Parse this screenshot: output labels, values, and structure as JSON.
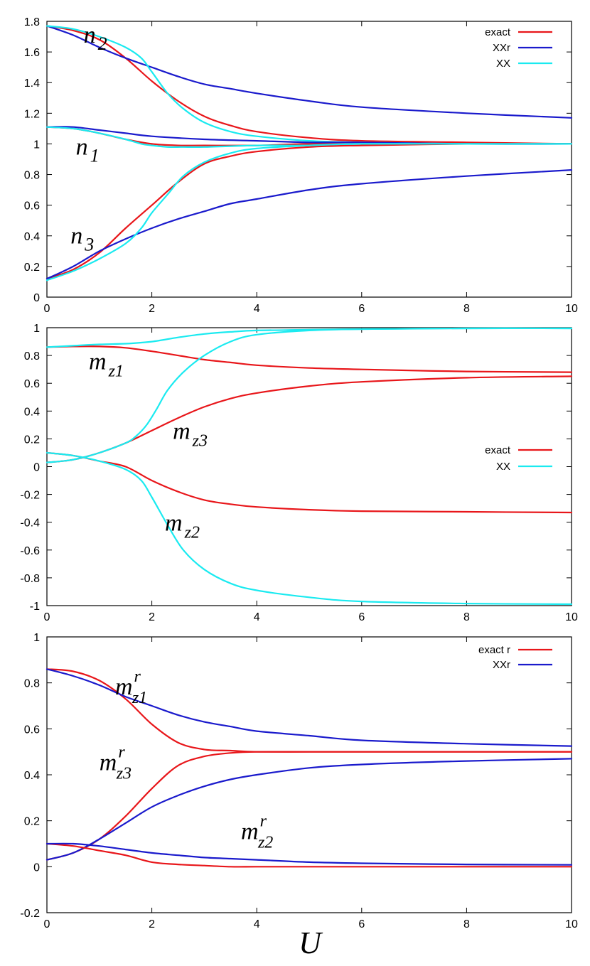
{
  "chart_data": [
    {
      "type": "line",
      "xlim": [
        0,
        10
      ],
      "ylim": [
        0,
        1.8
      ],
      "xticks": [
        "0",
        "2",
        "4",
        "6",
        "8",
        "10"
      ],
      "yticks": [
        "0",
        "0.2",
        "0.4",
        "0.6",
        "0.8",
        "1",
        "1.2",
        "1.4",
        "1.6",
        "1.8"
      ],
      "legend": [
        {
          "name": "exact",
          "color": "#e8161a"
        },
        {
          "name": "XXr",
          "color": "#1a1acc"
        },
        {
          "name": "XX",
          "color": "#1aeaf0"
        }
      ],
      "annotations": [
        {
          "base": "n",
          "sub": "2",
          "sup": "",
          "at": [
            0.7,
            1.66
          ]
        },
        {
          "base": "n",
          "sub": "1",
          "sup": "",
          "at": [
            0.55,
            0.93
          ]
        },
        {
          "base": "n",
          "sub": "3",
          "sup": "",
          "at": [
            0.45,
            0.35
          ]
        }
      ],
      "series": [
        {
          "name": "n2 exact",
          "color": "#e8161a",
          "x": [
            0,
            0.5,
            1,
            1.5,
            2,
            2.5,
            3,
            3.5,
            4,
            5,
            6,
            8,
            10
          ],
          "y": [
            1.77,
            1.74,
            1.68,
            1.56,
            1.41,
            1.28,
            1.18,
            1.12,
            1.08,
            1.04,
            1.02,
            1.01,
            1.0
          ]
        },
        {
          "name": "n2 XXr",
          "color": "#1a1acc",
          "x": [
            0,
            0.5,
            1,
            1.5,
            2,
            2.5,
            3,
            3.5,
            4,
            5,
            6,
            8,
            10
          ],
          "y": [
            1.77,
            1.71,
            1.63,
            1.56,
            1.5,
            1.44,
            1.39,
            1.36,
            1.33,
            1.28,
            1.24,
            1.2,
            1.17
          ]
        },
        {
          "name": "n2 XX",
          "color": "#1aeaf0",
          "x": [
            0,
            0.5,
            1,
            1.5,
            1.8,
            2,
            2.3,
            2.6,
            3,
            3.5,
            4,
            5,
            6,
            8,
            10
          ],
          "y": [
            1.77,
            1.75,
            1.7,
            1.63,
            1.56,
            1.47,
            1.33,
            1.23,
            1.14,
            1.08,
            1.05,
            1.02,
            1.01,
            1.0,
            1.0
          ]
        },
        {
          "name": "n1 exact",
          "color": "#e8161a",
          "x": [
            0,
            0.5,
            1,
            1.5,
            2,
            2.5,
            3,
            4,
            5,
            6,
            8,
            10
          ],
          "y": [
            1.11,
            1.1,
            1.07,
            1.03,
            1.0,
            0.99,
            0.99,
            0.99,
            1.0,
            1.0,
            1.0,
            1.0
          ]
        },
        {
          "name": "n1 XXr",
          "color": "#1a1acc",
          "x": [
            0,
            0.5,
            1,
            1.5,
            2,
            3,
            4,
            5,
            6,
            8,
            10
          ],
          "y": [
            1.11,
            1.11,
            1.09,
            1.07,
            1.05,
            1.03,
            1.02,
            1.01,
            1.01,
            1.0,
            1.0
          ]
        },
        {
          "name": "n1 XX",
          "color": "#1aeaf0",
          "x": [
            0,
            0.5,
            1,
            1.5,
            1.8,
            2,
            2.3,
            2.6,
            3,
            4,
            5,
            6,
            8,
            10
          ],
          "y": [
            1.11,
            1.1,
            1.07,
            1.03,
            1.0,
            0.99,
            0.98,
            0.98,
            0.98,
            0.99,
            0.99,
            1.0,
            1.0,
            1.0
          ]
        },
        {
          "name": "n3 exact",
          "color": "#e8161a",
          "x": [
            0,
            0.5,
            1,
            1.5,
            2,
            2.5,
            3,
            3.5,
            4,
            5,
            6,
            8,
            10
          ],
          "y": [
            0.12,
            0.18,
            0.29,
            0.45,
            0.6,
            0.75,
            0.87,
            0.92,
            0.95,
            0.98,
            0.99,
            1.0,
            1.0
          ]
        },
        {
          "name": "n3 XXr",
          "color": "#1a1acc",
          "x": [
            0,
            0.5,
            1,
            1.5,
            2,
            2.5,
            3,
            3.5,
            4,
            5,
            6,
            8,
            10
          ],
          "y": [
            0.12,
            0.2,
            0.3,
            0.38,
            0.45,
            0.51,
            0.56,
            0.61,
            0.64,
            0.7,
            0.74,
            0.79,
            0.83
          ]
        },
        {
          "name": "n3 XX",
          "color": "#1aeaf0",
          "x": [
            0,
            0.5,
            1,
            1.5,
            1.8,
            2,
            2.3,
            2.6,
            3,
            3.5,
            4,
            5,
            6,
            8,
            10
          ],
          "y": [
            0.11,
            0.17,
            0.25,
            0.35,
            0.45,
            0.55,
            0.67,
            0.79,
            0.88,
            0.94,
            0.97,
            0.99,
            1.0,
            1.0,
            1.0
          ]
        }
      ]
    },
    {
      "type": "line",
      "xlim": [
        0,
        10
      ],
      "ylim": [
        -1,
        1
      ],
      "xticks": [
        "0",
        "2",
        "4",
        "6",
        "8",
        "10"
      ],
      "yticks": [
        "-1",
        "-0.8",
        "-0.6",
        "-0.4",
        "-0.2",
        "0",
        "0.2",
        "0.4",
        "0.6",
        "0.8",
        "1"
      ],
      "legend": [
        {
          "name": "exact",
          "color": "#e8161a"
        },
        {
          "name": "XX",
          "color": "#1aeaf0"
        }
      ],
      "annotations": [
        {
          "base": "m",
          "sub": "z1",
          "sup": "",
          "at": [
            0.8,
            0.7
          ]
        },
        {
          "base": "m",
          "sub": "z3",
          "sup": "",
          "at": [
            2.4,
            0.2
          ]
        },
        {
          "base": "m",
          "sub": "z2",
          "sup": "",
          "at": [
            2.25,
            -0.46
          ]
        }
      ],
      "series": [
        {
          "name": "mz1 exact",
          "color": "#e8161a",
          "x": [
            0,
            0.5,
            1,
            1.5,
            2,
            2.5,
            3,
            3.5,
            4,
            5,
            6,
            8,
            10
          ],
          "y": [
            0.86,
            0.865,
            0.865,
            0.855,
            0.83,
            0.8,
            0.77,
            0.75,
            0.73,
            0.71,
            0.7,
            0.685,
            0.68
          ]
        },
        {
          "name": "mz1 XX",
          "color": "#1aeaf0",
          "x": [
            0,
            0.5,
            1,
            1.5,
            2,
            2.5,
            3,
            3.5,
            4,
            5,
            6,
            8,
            10
          ],
          "y": [
            0.86,
            0.87,
            0.88,
            0.885,
            0.9,
            0.93,
            0.955,
            0.97,
            0.98,
            0.985,
            0.99,
            0.995,
            0.995
          ]
        },
        {
          "name": "mz3 exact",
          "color": "#e8161a",
          "x": [
            0,
            0.5,
            1,
            1.5,
            2,
            2.5,
            3,
            3.5,
            4,
            5,
            6,
            8,
            10
          ],
          "y": [
            0.03,
            0.05,
            0.1,
            0.17,
            0.26,
            0.35,
            0.43,
            0.49,
            0.53,
            0.58,
            0.61,
            0.64,
            0.65
          ]
        },
        {
          "name": "mz3 XX",
          "color": "#1aeaf0",
          "x": [
            0,
            0.5,
            1,
            1.5,
            1.7,
            1.9,
            2.1,
            2.3,
            2.6,
            3,
            3.5,
            4,
            5,
            6,
            8,
            10
          ],
          "y": [
            0.03,
            0.05,
            0.1,
            0.17,
            0.22,
            0.3,
            0.42,
            0.55,
            0.68,
            0.8,
            0.9,
            0.95,
            0.98,
            0.99,
            0.995,
            0.995
          ]
        },
        {
          "name": "mz2 exact",
          "color": "#e8161a",
          "x": [
            0,
            0.5,
            1,
            1.5,
            2,
            2.5,
            3,
            3.5,
            4,
            5,
            6,
            8,
            10
          ],
          "y": [
            0.1,
            0.08,
            0.04,
            0.0,
            -0.1,
            -0.18,
            -0.24,
            -0.27,
            -0.29,
            -0.31,
            -0.32,
            -0.325,
            -0.33
          ]
        },
        {
          "name": "mz2 XX",
          "color": "#1aeaf0",
          "x": [
            0,
            0.5,
            1,
            1.5,
            1.8,
            2,
            2.3,
            2.6,
            3,
            3.5,
            4,
            5,
            6,
            8,
            10
          ],
          "y": [
            0.1,
            0.08,
            0.04,
            -0.02,
            -0.1,
            -0.22,
            -0.42,
            -0.6,
            -0.74,
            -0.84,
            -0.89,
            -0.94,
            -0.97,
            -0.985,
            -0.99
          ]
        }
      ]
    },
    {
      "type": "line",
      "xlim": [
        0,
        10
      ],
      "ylim": [
        -0.2,
        1
      ],
      "xticks": [
        "0",
        "2",
        "4",
        "6",
        "8",
        "10"
      ],
      "yticks": [
        "-0.2",
        "0",
        "0.2",
        "0.4",
        "0.6",
        "0.8",
        "1"
      ],
      "xlabel": "U",
      "legend": [
        {
          "name": "exact r",
          "color": "#e8161a"
        },
        {
          "name": "XXr",
          "color": "#1a1acc"
        }
      ],
      "annotations": [
        {
          "base": "m",
          "sub": "z1",
          "sup": "r",
          "at": [
            1.3,
            0.75
          ]
        },
        {
          "base": "m",
          "sub": "z3",
          "sup": "r",
          "at": [
            1.0,
            0.42
          ]
        },
        {
          "base": "m",
          "sub": "z2",
          "sup": "r",
          "at": [
            3.7,
            0.12
          ]
        }
      ],
      "series": [
        {
          "name": "mz1r exact",
          "color": "#e8161a",
          "x": [
            0,
            0.5,
            1,
            1.5,
            2,
            2.5,
            3,
            3.5,
            4,
            5,
            6,
            8,
            10
          ],
          "y": [
            0.86,
            0.85,
            0.81,
            0.73,
            0.62,
            0.54,
            0.51,
            0.505,
            0.5,
            0.5,
            0.5,
            0.5,
            0.5
          ]
        },
        {
          "name": "mz1r XXr",
          "color": "#1a1acc",
          "x": [
            0,
            0.5,
            1,
            1.5,
            2,
            2.5,
            3,
            3.5,
            4,
            5,
            6,
            8,
            10
          ],
          "y": [
            0.86,
            0.83,
            0.79,
            0.74,
            0.7,
            0.66,
            0.63,
            0.61,
            0.59,
            0.57,
            0.55,
            0.535,
            0.525
          ]
        },
        {
          "name": "mz3r exact",
          "color": "#e8161a",
          "x": [
            0,
            0.5,
            1,
            1.5,
            2,
            2.5,
            3,
            3.5,
            4,
            5,
            6,
            8,
            10
          ],
          "y": [
            0.03,
            0.06,
            0.12,
            0.22,
            0.34,
            0.44,
            0.48,
            0.495,
            0.5,
            0.5,
            0.5,
            0.5,
            0.5
          ]
        },
        {
          "name": "mz3r XXr",
          "color": "#1a1acc",
          "x": [
            0,
            0.5,
            1,
            1.5,
            2,
            2.5,
            3,
            3.5,
            4,
            5,
            6,
            8,
            10
          ],
          "y": [
            0.03,
            0.06,
            0.12,
            0.19,
            0.26,
            0.31,
            0.35,
            0.38,
            0.4,
            0.43,
            0.445,
            0.46,
            0.47
          ]
        },
        {
          "name": "mz2r exact",
          "color": "#e8161a",
          "x": [
            0,
            0.5,
            1,
            1.5,
            2,
            2.5,
            3,
            3.5,
            4,
            5,
            6,
            8,
            10
          ],
          "y": [
            0.1,
            0.09,
            0.07,
            0.05,
            0.02,
            0.01,
            0.005,
            0.0,
            0.0,
            0.0,
            0.0,
            0.0,
            0.0
          ]
        },
        {
          "name": "mz2r XXr",
          "color": "#1a1acc",
          "x": [
            0,
            0.5,
            1,
            1.5,
            2,
            2.5,
            3,
            3.5,
            4,
            5,
            6,
            8,
            10
          ],
          "y": [
            0.1,
            0.1,
            0.09,
            0.075,
            0.06,
            0.05,
            0.04,
            0.035,
            0.03,
            0.02,
            0.015,
            0.01,
            0.008
          ]
        }
      ]
    }
  ]
}
